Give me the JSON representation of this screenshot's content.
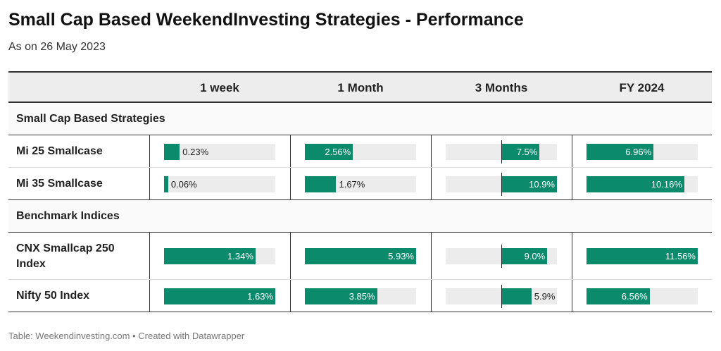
{
  "header": {
    "title": "Small Cap Based WeekendInvesting Strategies - Performance",
    "subtitle": "As on 26 May 2023"
  },
  "footer": {
    "source": "Table: Weekendinvesting.com • Created with Datawrapper"
  },
  "colors": {
    "bar": "#0b8a6c",
    "track": "#ececec",
    "header_bg": "#ededed"
  },
  "chart_data": {
    "type": "table",
    "columns": [
      "",
      "1 week",
      "1 Month",
      "3 Months",
      "FY 2024"
    ],
    "groups": [
      {
        "name": "Small Cap Based Strategies",
        "rows": [
          {
            "label": "Mi 25 Smallcase",
            "values": [
              0.23,
              2.56,
              7.5,
              6.96
            ],
            "display": [
              "0.23%",
              "2.56%",
              "7.5%",
              "6.96%"
            ]
          },
          {
            "label": "Mi 35 Smallcase",
            "values": [
              0.06,
              1.67,
              10.9,
              10.16
            ],
            "display": [
              "0.06%",
              "1.67%",
              "10.9%",
              "10.16%"
            ]
          }
        ]
      },
      {
        "name": "Benchmark Indices",
        "rows": [
          {
            "label": "CNX Smallcap 250 Index",
            "values": [
              1.34,
              5.93,
              9.0,
              11.56
            ],
            "display": [
              "1.34%",
              "5.93%",
              "9.0%",
              "11.56%"
            ]
          },
          {
            "label": "Nifty 50 Index",
            "values": [
              1.63,
              3.85,
              5.9,
              6.56
            ],
            "display": [
              "1.63%",
              "3.85%",
              "5.9%",
              "6.56%"
            ]
          }
        ]
      }
    ],
    "column_ranges": [
      [
        0,
        1.63
      ],
      [
        0,
        5.93
      ],
      [
        -10.9,
        10.9
      ],
      [
        0,
        11.56
      ]
    ]
  }
}
